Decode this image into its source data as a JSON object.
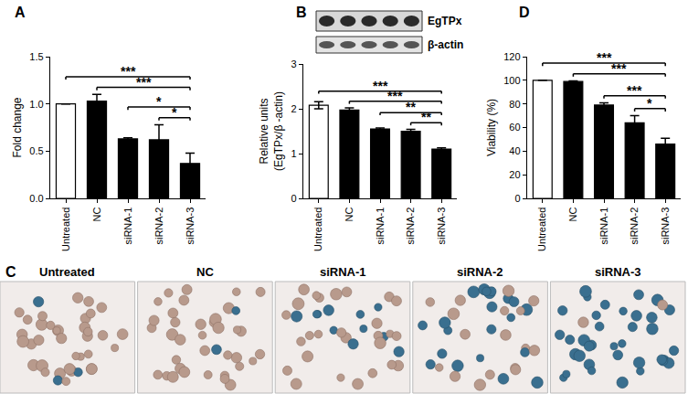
{
  "chart_data": [
    {
      "type": "bar",
      "title": "A",
      "categories": [
        "Untreated",
        "NC",
        "siRNA-1",
        "siRNA-2",
        "siRNA-3"
      ],
      "values": [
        1.0,
        1.03,
        0.63,
        0.62,
        0.37
      ],
      "errors": [
        0,
        0.07,
        0.01,
        0.16,
        0.11
      ],
      "colors": [
        "#ffffff",
        "#000000",
        "#000000",
        "#000000",
        "#000000"
      ],
      "y_label": "Fold change",
      "ylim": [
        0,
        1.5
      ],
      "yticks": [
        {
          "value": 0,
          "label": "0.0"
        },
        {
          "value": 0.5,
          "label": "0.5"
        },
        {
          "value": 1,
          "label": "1.0"
        },
        {
          "value": 1.5,
          "label": "1.5"
        }
      ],
      "grid": false,
      "annotations": [
        {
          "from": "Untreated",
          "to": "siRNA-3",
          "text": "***"
        },
        {
          "from": "NC",
          "to": "siRNA-3",
          "text": "***"
        },
        {
          "from": "siRNA-1",
          "to": "siRNA-3",
          "text": "*"
        },
        {
          "from": "siRNA-2",
          "to": "siRNA-3",
          "text": "*"
        }
      ]
    },
    {
      "type": "bar",
      "title": "B",
      "categories": [
        "Untreated",
        "NC",
        "siRNA-1",
        "siRNA-2",
        "siRNA-3"
      ],
      "values": [
        2.08,
        1.97,
        1.55,
        1.5,
        1.1
      ],
      "errors": [
        0.08,
        0.05,
        0.02,
        0.04,
        0.03
      ],
      "colors": [
        "#ffffff",
        "#000000",
        "#000000",
        "#000000",
        "#000000"
      ],
      "y_label": "Relative units\n(EgTPx/β -actin)",
      "ylim": [
        0,
        3
      ],
      "yticks": [
        0,
        1,
        2,
        3
      ],
      "grid": false,
      "blot_labels": [
        "EgTPx",
        "β-actin"
      ],
      "annotations": [
        {
          "from": "Untreated",
          "to": "siRNA-3",
          "text": "***"
        },
        {
          "from": "NC",
          "to": "siRNA-3",
          "text": "***"
        },
        {
          "from": "siRNA-1",
          "to": "siRNA-3",
          "text": "**"
        },
        {
          "from": "siRNA-2",
          "to": "siRNA-3",
          "text": "**"
        }
      ]
    },
    {
      "type": "bar",
      "title": "D",
      "categories": [
        "Untreated",
        "NC",
        "siRNA-1",
        "siRNA-2",
        "siRNA-3"
      ],
      "values": [
        100,
        99,
        79,
        64,
        46
      ],
      "errors": [
        0,
        0.5,
        2,
        6,
        5
      ],
      "colors": [
        "#ffffff",
        "#000000",
        "#000000",
        "#000000",
        "#000000"
      ],
      "y_label": "Viability (%)",
      "ylim": [
        0,
        120
      ],
      "yticks": [
        0,
        20,
        40,
        60,
        80,
        100,
        120
      ],
      "grid": false,
      "annotations": [
        {
          "from": "Untreated",
          "to": "siRNA-3",
          "text": "***"
        },
        {
          "from": "NC",
          "to": "siRNA-3",
          "text": "***"
        },
        {
          "from": "siRNA-1",
          "to": "siRNA-3",
          "text": "***"
        },
        {
          "from": "siRNA-2",
          "to": "siRNA-3",
          "text": "*"
        }
      ]
    }
  ],
  "panel_c": {
    "title": "C",
    "images": [
      "Untreated",
      "NC",
      "siRNA-1",
      "siRNA-2",
      "siRNA-3"
    ]
  }
}
